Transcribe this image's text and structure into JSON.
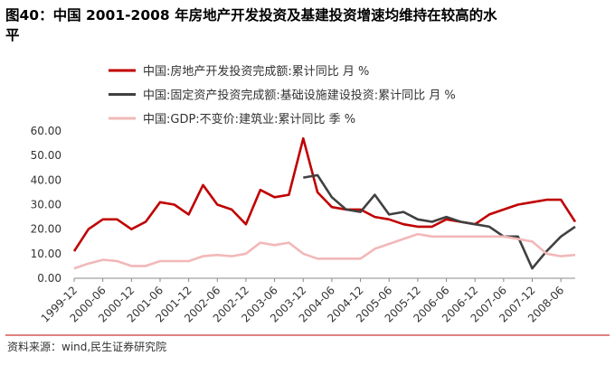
{
  "chart_data": {
    "type": "line",
    "title_lines": [
      "图40：中国 2001-2008 年房地产开发投资及基建投资增速均维持在较高的水",
      "平"
    ],
    "source": "资料来源：wind,民生证券研究院",
    "categories": [
      "1999-12",
      null,
      "2000-06",
      null,
      "2000-12",
      null,
      "2001-06",
      null,
      "2001-12",
      null,
      "2002-06",
      null,
      "2002-12",
      null,
      "2003-06",
      null,
      "2003-12",
      null,
      "2004-06",
      null,
      "2004-12",
      null,
      "2005-06",
      null,
      "2005-12",
      null,
      "2006-06",
      null,
      "2006-12",
      null,
      "2007-06",
      null,
      "2007-12",
      null,
      "2008-06",
      null
    ],
    "series": [
      {
        "name": "中国:房地产开发投资完成额:累计同比 月 %",
        "color": "#c00000",
        "values": [
          11,
          20,
          24,
          24,
          20,
          23,
          31,
          30,
          26,
          38,
          30,
          28,
          22,
          36,
          33,
          34,
          57,
          35,
          29,
          28,
          28,
          25,
          24,
          22,
          21,
          21,
          24,
          23,
          22,
          26,
          28,
          30,
          31,
          32,
          32,
          23
        ]
      },
      {
        "name": "中国:固定资产投资完成额:基础设施建设投资:累计同比 月 %",
        "color": "#404040",
        "values": [
          null,
          null,
          null,
          null,
          null,
          null,
          null,
          null,
          null,
          null,
          null,
          null,
          null,
          null,
          null,
          null,
          41,
          42,
          33,
          28,
          27,
          34,
          26,
          27,
          24,
          23,
          25,
          23,
          22,
          21,
          17,
          17,
          4,
          11,
          17,
          21
        ]
      },
      {
        "name": "中国:GDP:不变价:建筑业:累计同比 季 %",
        "color": "#f2b8b8",
        "values": [
          4,
          6,
          7.5,
          7,
          5,
          5,
          7,
          7,
          7,
          9,
          9.5,
          9,
          10,
          14.5,
          13.5,
          14.5,
          10,
          8,
          8,
          8,
          8,
          12,
          14,
          16,
          18,
          17,
          17,
          17,
          17,
          17,
          17,
          16,
          15,
          10,
          9,
          9.5
        ]
      }
    ],
    "ylim": [
      0,
      60
    ],
    "yticks": [
      {
        "value": 0,
        "label": "0.00"
      },
      {
        "value": 10,
        "label": "10.00"
      },
      {
        "value": 20,
        "label": "20.00"
      },
      {
        "value": 30,
        "label": "30.00"
      },
      {
        "value": 40,
        "label": "40.00"
      },
      {
        "value": 50,
        "label": "50.00"
      },
      {
        "value": 60,
        "label": "60.00"
      }
    ]
  }
}
